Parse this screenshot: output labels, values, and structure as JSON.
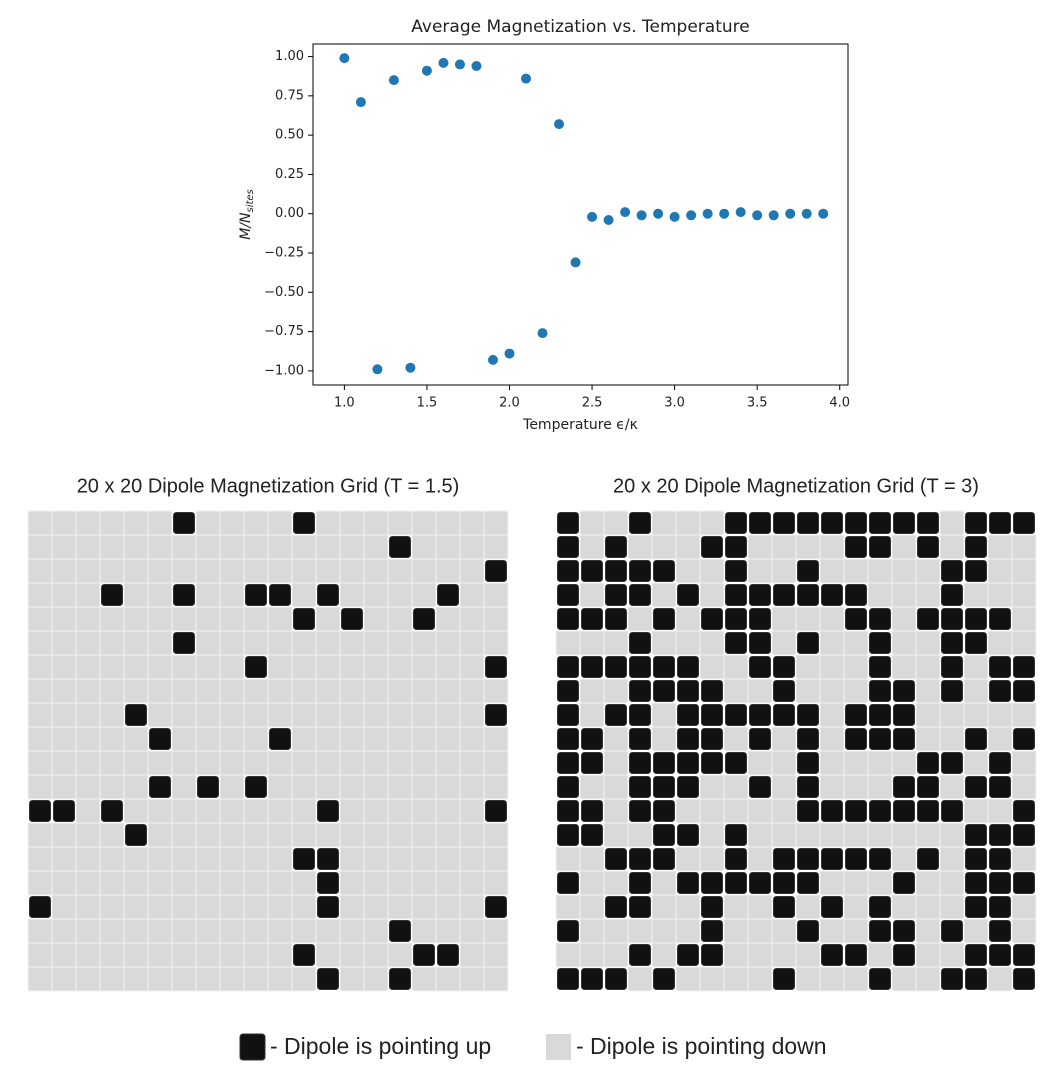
{
  "chart_data": [
    {
      "type": "scatter",
      "title": "Average Magnetization vs. Temperature",
      "xlabel": "Temperature ϵ/κ",
      "ylabel": "M/N",
      "ylabel_sub": "sites",
      "color": "#1f77b4",
      "x": [
        1.0,
        1.1,
        1.2,
        1.3,
        1.4,
        1.5,
        1.6,
        1.7,
        1.8,
        1.9,
        2.0,
        2.1,
        2.2,
        2.3,
        2.4,
        2.5,
        2.6,
        2.7,
        2.8,
        2.9,
        3.0,
        3.1,
        3.2,
        3.3,
        3.4,
        3.5,
        3.6,
        3.7,
        3.8,
        3.9
      ],
      "values": [
        0.99,
        0.71,
        -0.99,
        0.85,
        -0.98,
        0.91,
        0.96,
        0.95,
        0.94,
        -0.93,
        -0.89,
        0.86,
        -0.76,
        0.57,
        -0.31,
        -0.02,
        -0.04,
        0.01,
        -0.01,
        0.0,
        -0.02,
        -0.01,
        0.0,
        0.0,
        0.01,
        -0.01,
        -0.01,
        0.0,
        0.0,
        0.0
      ],
      "xlim": [
        0.81,
        4.05
      ],
      "ylim": [
        -1.09,
        1.08
      ],
      "xticks": [
        {
          "value": 1,
          "label": "1.0"
        },
        {
          "value": 1.5,
          "label": "1.5"
        },
        {
          "value": 2,
          "label": "2.0"
        },
        {
          "value": 2.5,
          "label": "2.5"
        },
        {
          "value": 3,
          "label": "3.0"
        },
        {
          "value": 3.5,
          "label": "3.5"
        },
        {
          "value": 4,
          "label": "4.0"
        }
      ],
      "yticks": [
        {
          "value": 1,
          "label": "1.00"
        },
        {
          "value": 0.75,
          "label": "0.75"
        },
        {
          "value": 0.5,
          "label": "0.50"
        },
        {
          "value": 0.25,
          "label": "0.25"
        },
        {
          "value": 0,
          "label": "0.00"
        },
        {
          "value": -0.25,
          "label": "−0.25"
        },
        {
          "value": -0.5,
          "label": "−0.50"
        },
        {
          "value": -0.75,
          "label": "−0.75"
        },
        {
          "value": -1,
          "label": "−1.00"
        }
      ]
    },
    {
      "type": "grid",
      "title": "20 x 20 Dipole Magnetization Grid (T = 1.5)",
      "colors": [
        "#d9d9d9",
        "#111111"
      ],
      "values": [
        [
          0,
          0,
          0,
          0,
          0,
          0,
          1,
          0,
          0,
          0,
          0,
          1,
          0,
          0,
          0,
          0,
          0,
          0,
          0,
          0
        ],
        [
          0,
          0,
          0,
          0,
          0,
          0,
          0,
          0,
          0,
          0,
          0,
          0,
          0,
          0,
          0,
          1,
          0,
          0,
          0,
          0
        ],
        [
          0,
          0,
          0,
          0,
          0,
          0,
          0,
          0,
          0,
          0,
          0,
          0,
          0,
          0,
          0,
          0,
          0,
          0,
          0,
          1
        ],
        [
          0,
          0,
          0,
          1,
          0,
          0,
          1,
          0,
          0,
          1,
          1,
          0,
          1,
          0,
          0,
          0,
          0,
          1,
          0,
          0
        ],
        [
          0,
          0,
          0,
          0,
          0,
          0,
          0,
          0,
          0,
          0,
          0,
          1,
          0,
          1,
          0,
          0,
          1,
          0,
          0,
          0
        ],
        [
          0,
          0,
          0,
          0,
          0,
          0,
          1,
          0,
          0,
          0,
          0,
          0,
          0,
          0,
          0,
          0,
          0,
          0,
          0,
          0
        ],
        [
          0,
          0,
          0,
          0,
          0,
          0,
          0,
          0,
          0,
          1,
          0,
          0,
          0,
          0,
          0,
          0,
          0,
          0,
          0,
          1
        ],
        [
          0,
          0,
          0,
          0,
          0,
          0,
          0,
          0,
          0,
          0,
          0,
          0,
          0,
          0,
          0,
          0,
          0,
          0,
          0,
          0
        ],
        [
          0,
          0,
          0,
          0,
          1,
          0,
          0,
          0,
          0,
          0,
          0,
          0,
          0,
          0,
          0,
          0,
          0,
          0,
          0,
          1
        ],
        [
          0,
          0,
          0,
          0,
          0,
          1,
          0,
          0,
          0,
          0,
          1,
          0,
          0,
          0,
          0,
          0,
          0,
          0,
          0,
          0
        ],
        [
          0,
          0,
          0,
          0,
          0,
          0,
          0,
          0,
          0,
          0,
          0,
          0,
          0,
          0,
          0,
          0,
          0,
          0,
          0,
          0
        ],
        [
          0,
          0,
          0,
          0,
          0,
          1,
          0,
          1,
          0,
          1,
          0,
          0,
          0,
          0,
          0,
          0,
          0,
          0,
          0,
          0
        ],
        [
          1,
          1,
          0,
          1,
          0,
          0,
          0,
          0,
          0,
          0,
          0,
          0,
          1,
          0,
          0,
          0,
          0,
          0,
          0,
          1
        ],
        [
          0,
          0,
          0,
          0,
          1,
          0,
          0,
          0,
          0,
          0,
          0,
          0,
          0,
          0,
          0,
          0,
          0,
          0,
          0,
          0
        ],
        [
          0,
          0,
          0,
          0,
          0,
          0,
          0,
          0,
          0,
          0,
          0,
          1,
          1,
          0,
          0,
          0,
          0,
          0,
          0,
          0
        ],
        [
          0,
          0,
          0,
          0,
          0,
          0,
          0,
          0,
          0,
          0,
          0,
          0,
          1,
          0,
          0,
          0,
          0,
          0,
          0,
          0
        ],
        [
          1,
          0,
          0,
          0,
          0,
          0,
          0,
          0,
          0,
          0,
          0,
          0,
          1,
          0,
          0,
          0,
          0,
          0,
          0,
          1
        ],
        [
          0,
          0,
          0,
          0,
          0,
          0,
          0,
          0,
          0,
          0,
          0,
          0,
          0,
          0,
          0,
          1,
          0,
          0,
          0,
          0
        ],
        [
          0,
          0,
          0,
          0,
          0,
          0,
          0,
          0,
          0,
          0,
          0,
          1,
          0,
          0,
          0,
          0,
          1,
          1,
          0,
          0
        ],
        [
          0,
          0,
          0,
          0,
          0,
          0,
          0,
          0,
          0,
          0,
          0,
          0,
          1,
          0,
          0,
          1,
          0,
          0,
          0,
          0
        ]
      ]
    },
    {
      "type": "grid",
      "title": "20 x 20 Dipole Magnetization Grid (T = 3)",
      "colors": [
        "#d9d9d9",
        "#111111"
      ],
      "values": [
        [
          1,
          0,
          0,
          1,
          0,
          0,
          0,
          1,
          1,
          1,
          1,
          1,
          1,
          1,
          1,
          1,
          0,
          1,
          1,
          1
        ],
        [
          1,
          0,
          1,
          0,
          0,
          0,
          1,
          1,
          0,
          0,
          0,
          0,
          1,
          1,
          0,
          1,
          0,
          1,
          0,
          0
        ],
        [
          1,
          1,
          1,
          1,
          1,
          0,
          0,
          1,
          0,
          0,
          1,
          0,
          0,
          0,
          0,
          0,
          1,
          1,
          0,
          0
        ],
        [
          1,
          0,
          1,
          1,
          0,
          1,
          0,
          1,
          1,
          1,
          1,
          1,
          1,
          0,
          0,
          0,
          1,
          0,
          0,
          0
        ],
        [
          1,
          1,
          1,
          0,
          1,
          0,
          1,
          1,
          1,
          0,
          0,
          0,
          1,
          1,
          0,
          1,
          1,
          1,
          1,
          0
        ],
        [
          0,
          0,
          0,
          1,
          0,
          0,
          0,
          1,
          1,
          0,
          1,
          0,
          0,
          1,
          0,
          0,
          1,
          1,
          0,
          0
        ],
        [
          1,
          1,
          1,
          1,
          1,
          1,
          0,
          0,
          1,
          1,
          0,
          0,
          0,
          1,
          0,
          0,
          1,
          0,
          1,
          1
        ],
        [
          1,
          0,
          0,
          1,
          1,
          1,
          1,
          0,
          0,
          1,
          0,
          0,
          0,
          1,
          1,
          0,
          1,
          0,
          1,
          1
        ],
        [
          1,
          0,
          1,
          1,
          0,
          1,
          1,
          1,
          1,
          1,
          1,
          0,
          1,
          1,
          1,
          0,
          0,
          0,
          0,
          0
        ],
        [
          1,
          1,
          0,
          1,
          0,
          1,
          1,
          0,
          1,
          0,
          1,
          0,
          1,
          1,
          1,
          0,
          0,
          1,
          0,
          1
        ],
        [
          1,
          1,
          0,
          1,
          1,
          1,
          1,
          1,
          0,
          0,
          1,
          0,
          0,
          0,
          0,
          1,
          1,
          0,
          1,
          0
        ],
        [
          1,
          0,
          0,
          1,
          1,
          1,
          0,
          0,
          1,
          0,
          1,
          0,
          0,
          0,
          1,
          1,
          0,
          1,
          1,
          0
        ],
        [
          1,
          1,
          0,
          1,
          1,
          0,
          0,
          0,
          0,
          0,
          1,
          1,
          1,
          1,
          1,
          1,
          1,
          0,
          0,
          1
        ],
        [
          1,
          1,
          0,
          0,
          1,
          1,
          0,
          1,
          0,
          0,
          0,
          0,
          0,
          0,
          0,
          0,
          0,
          1,
          1,
          1
        ],
        [
          0,
          0,
          1,
          1,
          1,
          0,
          0,
          1,
          0,
          1,
          1,
          1,
          1,
          1,
          0,
          1,
          0,
          1,
          1,
          0
        ],
        [
          1,
          0,
          0,
          1,
          0,
          1,
          1,
          1,
          1,
          1,
          1,
          0,
          0,
          0,
          1,
          0,
          0,
          1,
          1,
          1
        ],
        [
          0,
          0,
          1,
          1,
          0,
          0,
          1,
          0,
          0,
          1,
          0,
          1,
          0,
          1,
          0,
          0,
          0,
          1,
          1,
          0
        ],
        [
          1,
          0,
          0,
          0,
          0,
          0,
          1,
          0,
          0,
          0,
          1,
          0,
          0,
          1,
          1,
          0,
          1,
          0,
          1,
          0
        ],
        [
          0,
          0,
          0,
          1,
          0,
          1,
          1,
          0,
          0,
          0,
          0,
          1,
          1,
          0,
          1,
          0,
          0,
          1,
          1,
          1
        ],
        [
          1,
          1,
          1,
          0,
          1,
          0,
          0,
          0,
          0,
          1,
          0,
          0,
          0,
          1,
          0,
          0,
          1,
          1,
          0,
          1
        ]
      ]
    }
  ],
  "legend": [
    {
      "label": "- Dipole is pointing up",
      "color": "#111111"
    },
    {
      "label": "- Dipole is pointing down",
      "color": "#d9d9d9"
    }
  ]
}
